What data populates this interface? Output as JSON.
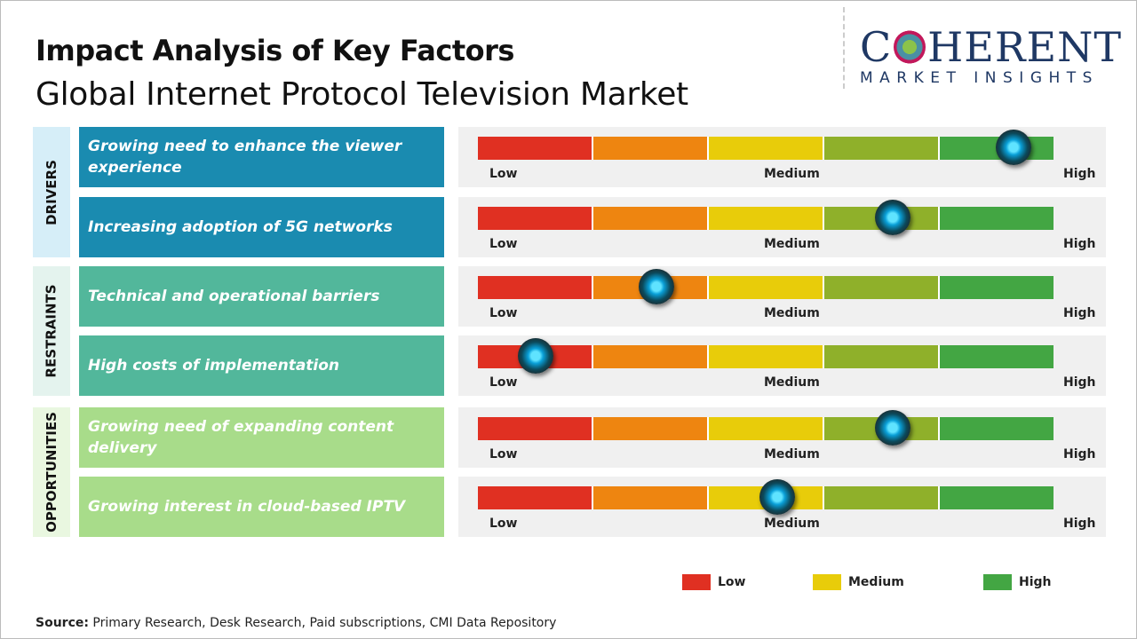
{
  "title": "Impact Analysis of Key Factors",
  "subtitle": "Global Internet Protocol Television Market",
  "logo": {
    "main": "COHERENT",
    "sub": "MARKET INSIGHTS"
  },
  "colors": {
    "low": "#e03022",
    "low_mid": "#ee8510",
    "medium": "#e8cc0a",
    "mid_high": "#8fb02a",
    "high": "#43a643"
  },
  "chart_data": {
    "type": "gauge",
    "scale_labels": [
      "Low",
      "Medium",
      "High"
    ],
    "categories": [
      {
        "name": "DRIVERS",
        "color": "#1a8bb0",
        "bg": "#d6eef8",
        "factors": [
          {
            "label": "Growing need to enhance the viewer experience",
            "value": 0.93
          },
          {
            "label": "Increasing adoption of 5G networks",
            "value": 0.72
          }
        ]
      },
      {
        "name": "RESTRAINTS",
        "color": "#52b79b",
        "bg": "#e4f3ee",
        "factors": [
          {
            "label": "Technical and operational barriers",
            "value": 0.31
          },
          {
            "label": "High costs of implementation",
            "value": 0.1
          }
        ]
      },
      {
        "name": "OPPORTUNITIES",
        "color": "#a8dc8a",
        "bg": "#e9f7e0",
        "factors": [
          {
            "label": "Growing need of expanding content delivery",
            "value": 0.72
          },
          {
            "label": "Growing interest in cloud-based IPTV",
            "value": 0.52
          }
        ]
      }
    ],
    "legend": [
      {
        "label": "Low",
        "color": "#e03022"
      },
      {
        "label": "Medium",
        "color": "#e8cc0a"
      },
      {
        "label": "High",
        "color": "#43a643"
      }
    ]
  },
  "source": {
    "label": "Source:",
    "text": " Primary Research, Desk Research, Paid subscriptions, CMI Data Repository"
  }
}
